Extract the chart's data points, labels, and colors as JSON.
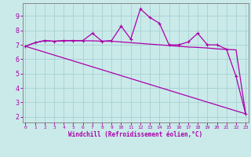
{
  "title": "",
  "xlabel": "Windchill (Refroidissement éolien,°C)",
  "bg_color": "#caeaea",
  "grid_color": "#aad4d4",
  "line_color": "#aa00aa",
  "x_ticks": [
    0,
    1,
    2,
    3,
    4,
    5,
    6,
    7,
    8,
    9,
    10,
    11,
    12,
    13,
    14,
    15,
    16,
    17,
    18,
    19,
    20,
    21,
    22,
    23
  ],
  "y_ticks": [
    2,
    3,
    4,
    5,
    6,
    7,
    8,
    9
  ],
  "ylim": [
    1.6,
    9.9
  ],
  "xlim": [
    -0.3,
    23.3
  ],
  "line1_x": [
    0,
    1,
    2,
    3,
    4,
    5,
    6,
    7,
    8,
    9,
    10,
    11,
    12,
    13,
    14,
    15,
    16,
    17,
    18,
    19,
    20,
    21,
    22,
    23
  ],
  "line1_y": [
    6.9,
    7.15,
    7.3,
    7.25,
    7.3,
    7.3,
    7.3,
    7.8,
    7.25,
    7.3,
    8.3,
    7.4,
    9.5,
    8.9,
    8.5,
    7.0,
    7.0,
    7.2,
    7.8,
    7.0,
    7.0,
    6.7,
    4.8,
    2.2
  ],
  "line2_x": [
    0,
    1,
    2,
    3,
    4,
    5,
    6,
    7,
    8,
    9,
    10,
    11,
    12,
    13,
    14,
    15,
    16,
    17,
    18,
    19,
    20,
    21,
    22,
    23
  ],
  "line2_y": [
    6.9,
    7.15,
    7.28,
    7.25,
    7.28,
    7.28,
    7.28,
    7.28,
    7.25,
    7.25,
    7.2,
    7.15,
    7.1,
    7.05,
    7.0,
    6.95,
    6.9,
    6.85,
    6.82,
    6.78,
    6.72,
    6.68,
    6.65,
    2.2
  ],
  "line3_x": [
    0,
    23
  ],
  "line3_y": [
    6.9,
    2.2
  ]
}
